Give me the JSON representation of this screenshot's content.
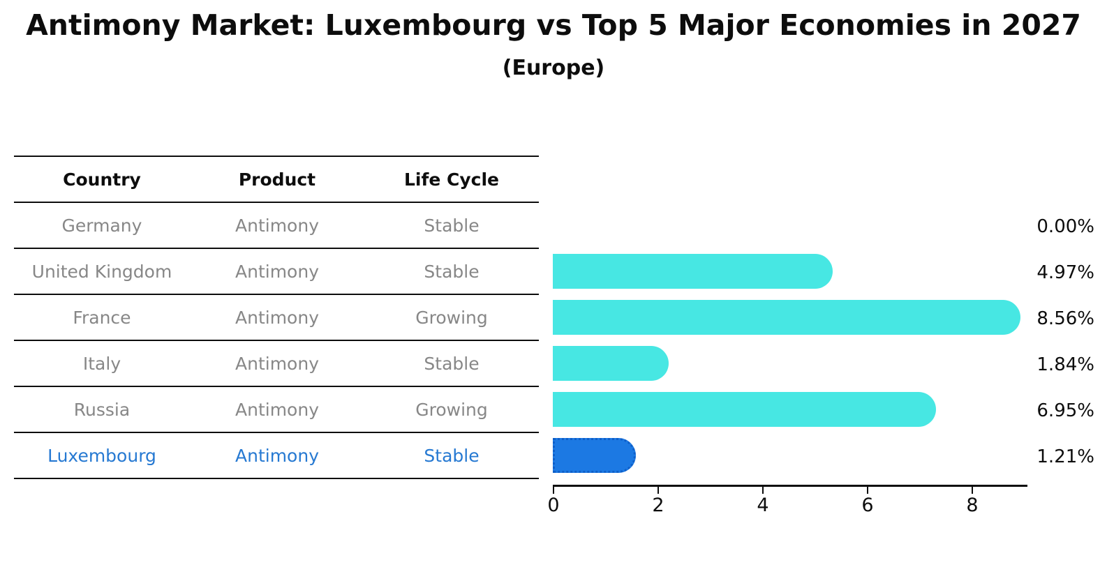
{
  "header": {
    "title": "Antimony Market: Luxembourg vs Top 5 Major Economies in 2027",
    "subtitle": "(Europe)"
  },
  "table": {
    "headers": [
      "Country",
      "Product",
      "Life Cycle"
    ],
    "rows": [
      {
        "country": "Germany",
        "product": "Antimony",
        "life_cycle": "Stable",
        "highlight": false
      },
      {
        "country": "United Kingdom",
        "product": "Antimony",
        "life_cycle": "Stable",
        "highlight": false
      },
      {
        "country": "France",
        "product": "Antimony",
        "life_cycle": "Growing",
        "highlight": false
      },
      {
        "country": "Italy",
        "product": "Antimony",
        "life_cycle": "Stable",
        "highlight": false
      },
      {
        "country": "Russia",
        "product": "Antimony",
        "life_cycle": "Growing",
        "highlight": false
      },
      {
        "country": "Luxembourg",
        "product": "Antimony",
        "life_cycle": "Stable",
        "highlight": true
      }
    ]
  },
  "chart_data": {
    "type": "bar",
    "orientation": "horizontal",
    "title": "Antimony Market: Luxembourg vs Top 5 Major Economies in 2027",
    "subtitle": "(Europe)",
    "categories": [
      "Germany",
      "United Kingdom",
      "France",
      "Italy",
      "Russia",
      "Luxembourg"
    ],
    "values": [
      0.0,
      4.97,
      8.56,
      1.84,
      6.95,
      1.21
    ],
    "value_labels": [
      "0.00%",
      "4.97%",
      "8.56%",
      "1.84%",
      "6.95%",
      "1.21%"
    ],
    "xlabel": "",
    "ylabel": "",
    "xticks": [
      0,
      2,
      4,
      6,
      8
    ],
    "xlim": [
      0,
      9.07
    ],
    "grid": false,
    "legend": false,
    "highlight_index": 5
  },
  "colors": {
    "bar": "#47E7E3",
    "highlight_bar": "#1C79E3",
    "highlight_border": "#0E5FC9",
    "highlight_text": "#2679D2",
    "cell_text": "#878787",
    "axis": "#0d0d0d"
  }
}
